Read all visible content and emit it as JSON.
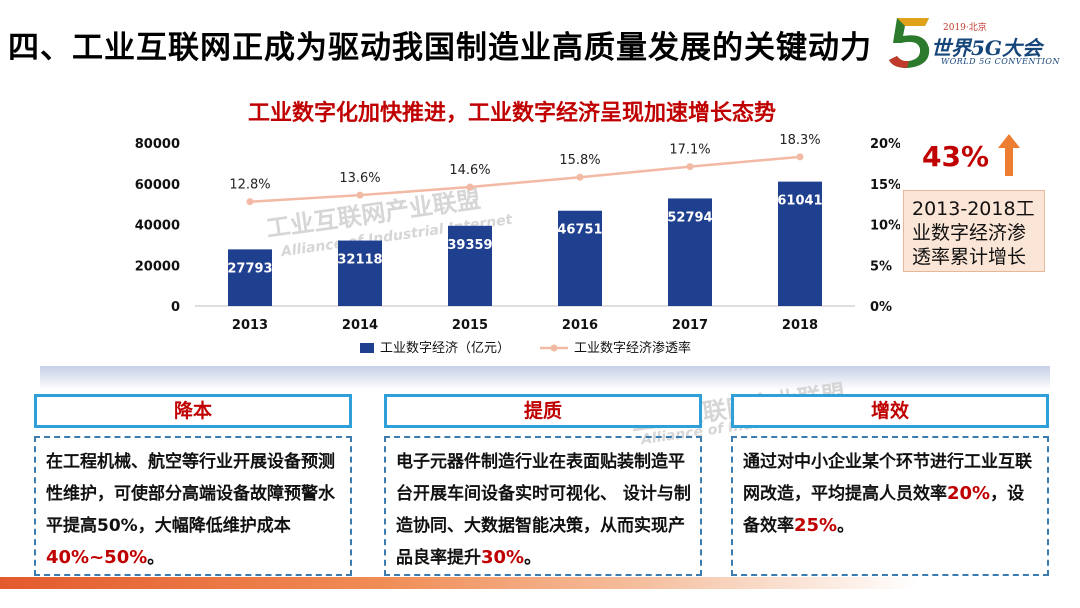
{
  "slide": {
    "title": "四、工业互联网正成为驱动我国制造业高质量发展的关键动力"
  },
  "logo": {
    "small_text": "2019·北京",
    "big_text": "世界5G大会",
    "en_text": "WORLD 5G CONVENTION"
  },
  "watermark": {
    "cn": "工业互联网产业联盟",
    "en": "Alliance of Industrial Internet"
  },
  "chart_data": {
    "type": "bar",
    "title": "工业数字化加快推进，工业数字经济呈现加速增长态势",
    "categories": [
      "2013",
      "2014",
      "2015",
      "2016",
      "2017",
      "2018"
    ],
    "series": [
      {
        "name": "工业数字经济（亿元）",
        "type": "bar",
        "axis": "left",
        "values": [
          27793,
          32118,
          39359,
          46751,
          52794,
          61041
        ],
        "color": "#1f3f8f"
      },
      {
        "name": "工业数字经济渗透率",
        "type": "line",
        "axis": "right",
        "values": [
          12.8,
          13.6,
          14.6,
          15.8,
          17.1,
          18.3
        ],
        "labels": [
          "12.8%",
          "13.6%",
          "14.6%",
          "15.8%",
          "17.1%",
          "18.3%"
        ],
        "color": "#f2b9a4"
      }
    ],
    "ylim": [
      0,
      80000
    ],
    "yticks": [
      "0",
      "20000",
      "40000",
      "60000",
      "80000"
    ],
    "y2lim": [
      0,
      20
    ],
    "y2ticks": [
      "0%",
      "5%",
      "10%",
      "15%",
      "20%"
    ],
    "legend_position": "bottom"
  },
  "callout": {
    "value": "43%",
    "arrow_icon": "up-arrow-icon",
    "text": "2013-2018工业数字经济渗透率累计增长"
  },
  "panels": [
    {
      "header": "降本",
      "text_pre": "在工程机械、航空等行业开展设备预测性维护，可使部分高端设备故障预警水平提高50%，大幅降低维护成本",
      "highlight": "40%~50%",
      "text_post": "。"
    },
    {
      "header": "提质",
      "text_pre": "电子元器件制造行业在表面贴装制造平台开展车间设备实时可视化、 设计与制造协同、大数据智能决策，从而实现产品良率提升",
      "highlight": "30%",
      "text_post": "。"
    },
    {
      "header": "增效",
      "text_pre": "通过对中小企业某个环节进行工业互联网改造，平均提高人员效率",
      "highlight": "20%",
      "text_mid": "，设备效率",
      "highlight2": "25%",
      "text_post": "。"
    }
  ]
}
